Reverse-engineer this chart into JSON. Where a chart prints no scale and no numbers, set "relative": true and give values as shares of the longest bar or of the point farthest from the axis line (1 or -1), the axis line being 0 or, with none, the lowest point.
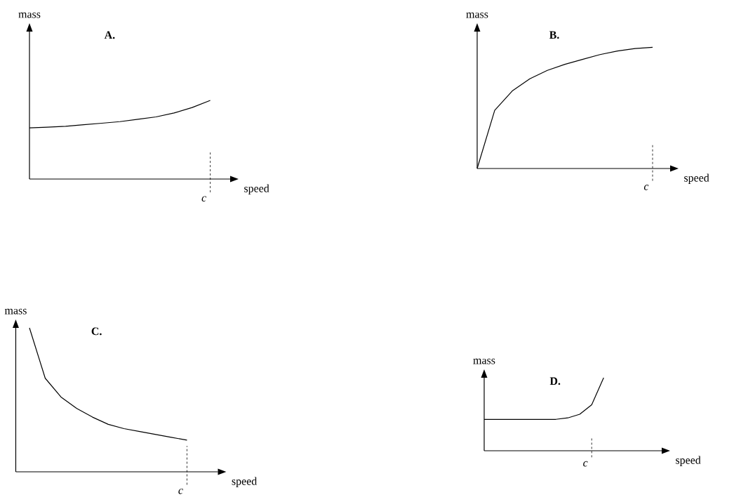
{
  "chart_data": [
    {
      "type": "line",
      "title": "A.",
      "xlabel": "speed",
      "ylabel": "mass",
      "relative": true,
      "line_style": "solid",
      "categories": [
        null,
        null,
        null,
        null,
        null,
        null,
        null,
        null,
        null,
        null,
        null
      ],
      "series": [
        {
          "color": "#000000",
          "values": [
            0.65,
            0.66,
            0.67,
            0.69,
            0.71,
            0.73,
            0.76,
            0.79,
            0.84,
            0.91,
            1.0
          ]
        }
      ],
      "annotations": [
        "c"
      ]
    },
    {
      "type": "line",
      "title": "B.",
      "xlabel": "speed",
      "ylabel": "mass",
      "relative": true,
      "line_style": "solid",
      "categories": [
        null,
        null,
        null,
        null,
        null,
        null,
        null,
        null,
        null,
        null,
        null
      ],
      "series": [
        {
          "color": "#000000",
          "values": [
            0,
            0.48,
            0.64,
            0.74,
            0.81,
            0.86,
            0.9,
            0.94,
            0.97,
            0.99,
            1.0
          ]
        }
      ],
      "annotations": [
        "c"
      ]
    },
    {
      "type": "line",
      "title": "C.",
      "xlabel": "speed",
      "ylabel": "mass",
      "relative": true,
      "line_style": "solid",
      "categories": [
        null,
        null,
        null,
        null,
        null,
        null,
        null,
        null,
        null,
        null,
        null
      ],
      "series": [
        {
          "color": "#000000",
          "values": [
            1.0,
            0.65,
            0.52,
            0.44,
            0.38,
            0.33,
            0.3,
            0.28,
            0.26,
            0.24,
            0.22
          ]
        }
      ],
      "annotations": [
        "c"
      ]
    },
    {
      "type": "line",
      "title": "D.",
      "xlabel": "speed",
      "ylabel": "mass",
      "relative": true,
      "line_style": "solid",
      "categories": [
        null,
        null,
        null,
        null,
        null,
        null,
        null,
        null,
        null,
        null,
        null
      ],
      "series": [
        {
          "color": "#000000",
          "values": [
            0.43,
            0.43,
            0.43,
            0.43,
            0.43,
            0.43,
            0.43,
            0.45,
            0.5,
            0.63,
            1.0
          ]
        }
      ],
      "annotations": [
        "c"
      ]
    }
  ]
}
